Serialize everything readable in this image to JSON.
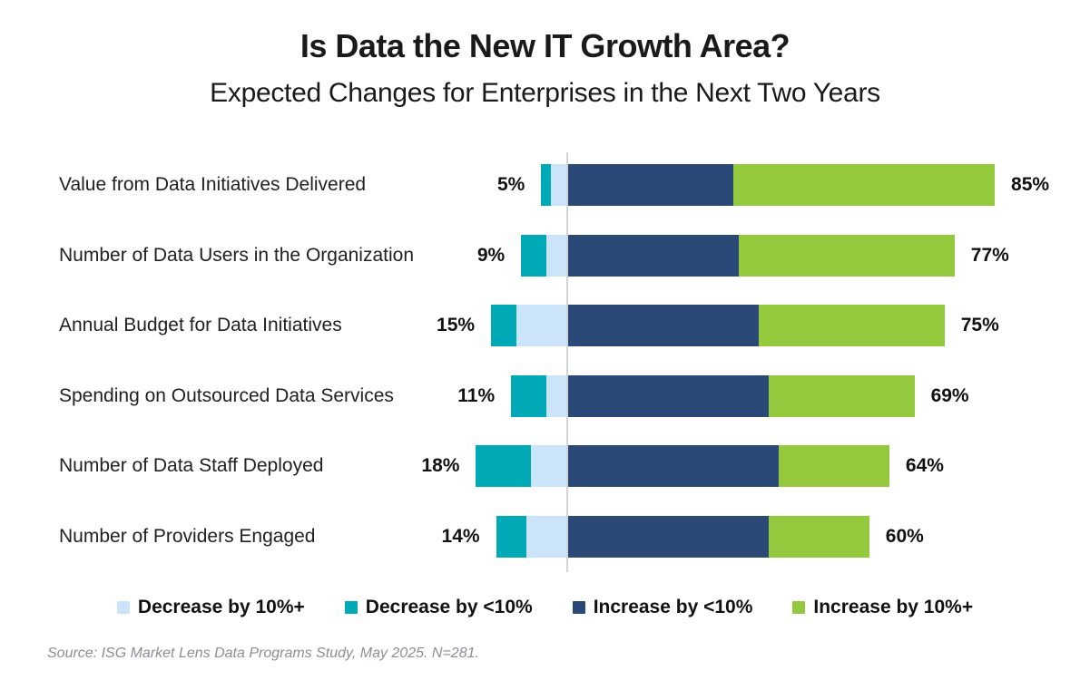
{
  "title": "Is Data the New IT Growth Area?",
  "subtitle": "Expected Changes for Enterprises in the Next Two Years",
  "source": "Source: ISG Market Lens Data Programs Study, May 2025. N=281.",
  "colors": {
    "decrease_10plus": "#CBE4FA",
    "decrease_lt10": "#00A9B6",
    "increase_lt10": "#2B4977",
    "increase_10plus": "#95C93D",
    "axis_line": "#D2D5D9",
    "title_text": "#1A1A1A",
    "label_text": "#212121",
    "source_text": "#8A8F94"
  },
  "legend": {
    "items": [
      {
        "id": "decrease_10plus",
        "label": "Decrease by 10%+",
        "color": "#CBE4FA"
      },
      {
        "id": "decrease_lt10",
        "label": "Decrease by <10%",
        "color": "#00A9B6"
      },
      {
        "id": "increase_lt10",
        "label": "Increase by <10%",
        "color": "#2B4977"
      },
      {
        "id": "increase_10plus",
        "label": "Increase by 10%+",
        "color": "#95C93D"
      }
    ]
  },
  "chart_data": {
    "type": "bar",
    "variant": "diverging-stacked-horizontal",
    "unit": "percent of respondents",
    "legend_position": "bottom",
    "axis": {
      "zero_line": true,
      "note": "decrease segments extend left of the zero line, increase segments extend right"
    },
    "segment_order_left_to_right": [
      "decrease_lt10",
      "decrease_10plus",
      "increase_lt10",
      "increase_10plus"
    ],
    "categories": [
      "Value from Data Initiatives Delivered",
      "Number of Data Users in the Organization",
      "Annual Budget for Data Initiatives",
      "Spending on Outsourced Data Services",
      "Number of Data Staff Deployed",
      "Number of Providers Engaged"
    ],
    "series": [
      {
        "id": "decrease_lt10",
        "name": "Decrease by <10%",
        "color": "#00A9B6",
        "values_estimated_from_pixels": true,
        "values": [
          2,
          5,
          5,
          7,
          11,
          6
        ]
      },
      {
        "id": "decrease_10plus",
        "name": "Decrease by 10%+",
        "color": "#CBE4FA",
        "values_estimated_from_pixels": true,
        "values": [
          3,
          4,
          10,
          4,
          7,
          8
        ]
      },
      {
        "id": "increase_lt10",
        "name": "Increase by <10%",
        "color": "#2B4977",
        "values_estimated_from_pixels": true,
        "values": [
          33,
          34,
          38,
          40,
          42,
          40
        ]
      },
      {
        "id": "increase_10plus",
        "name": "Increase by 10%+",
        "color": "#95C93D",
        "values_estimated_from_pixels": true,
        "values": [
          52,
          43,
          37,
          29,
          22,
          20
        ]
      }
    ],
    "total_labels": {
      "decrease": [
        "5%",
        "9%",
        "15%",
        "11%",
        "18%",
        "14%"
      ],
      "increase": [
        "85%",
        "77%",
        "75%",
        "69%",
        "64%",
        "60%"
      ]
    },
    "decrease_totals": [
      5,
      9,
      15,
      11,
      18,
      14
    ],
    "increase_totals": [
      85,
      77,
      75,
      69,
      64,
      60
    ]
  }
}
